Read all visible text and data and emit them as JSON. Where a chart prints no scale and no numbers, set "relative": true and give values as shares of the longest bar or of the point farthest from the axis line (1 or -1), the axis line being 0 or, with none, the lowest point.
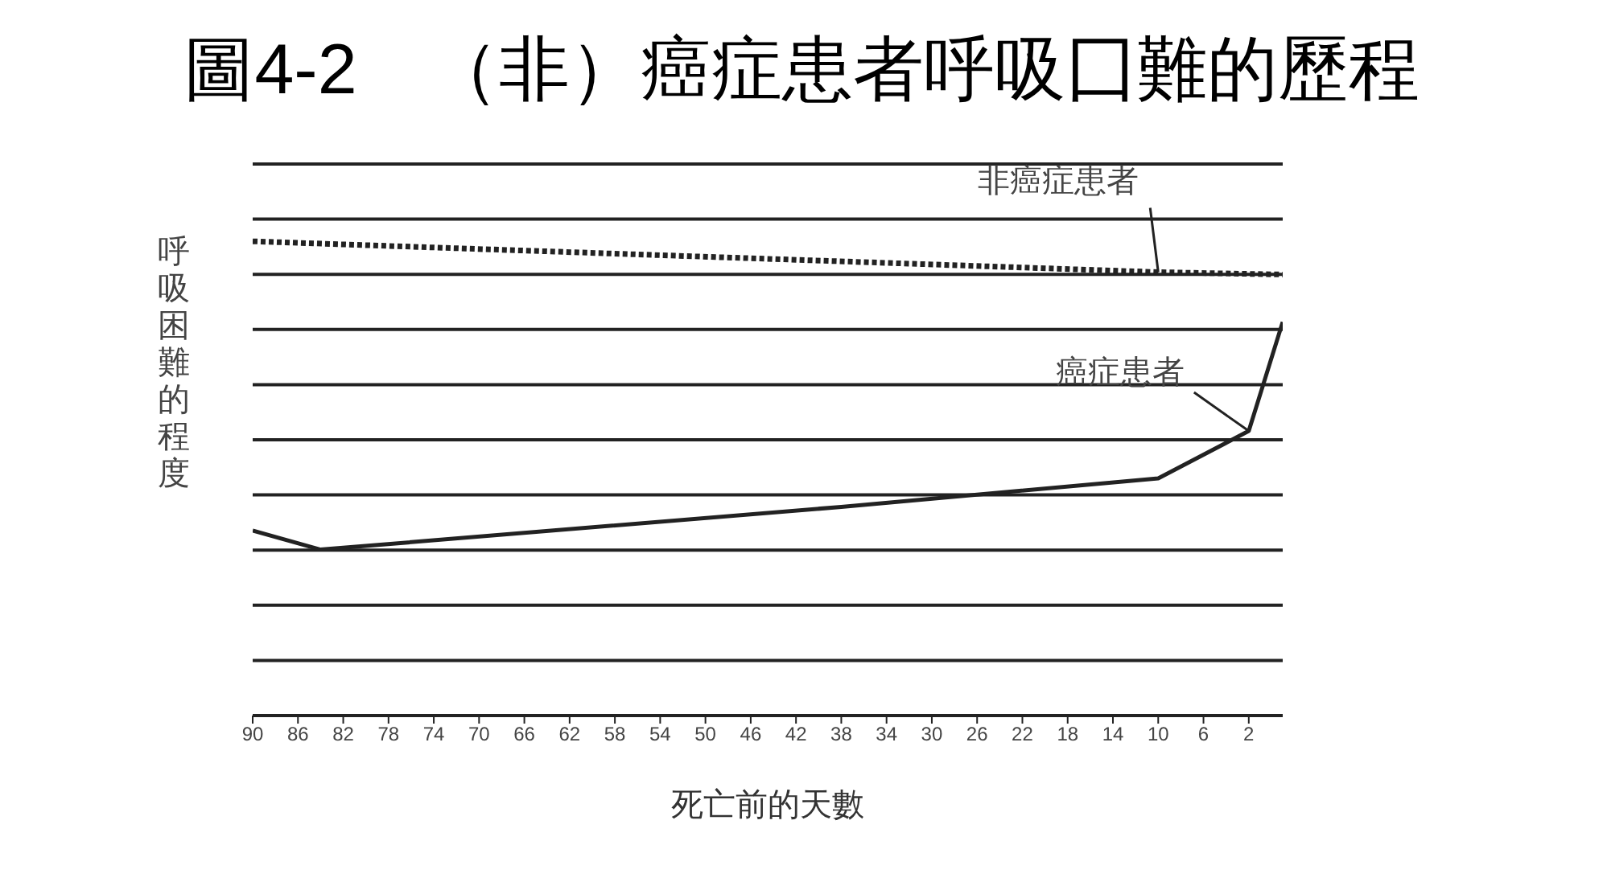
{
  "chart_data": {
    "type": "line",
    "title": "圖4-2　（非）癌症患者呼吸囗難的歷程",
    "xlabel": "死亡前的天數",
    "ylabel": "呼吸困難的程度",
    "relative": true,
    "xlim": [
      90,
      -1
    ],
    "xticks": [
      90,
      86,
      82,
      78,
      74,
      70,
      66,
      62,
      58,
      54,
      50,
      46,
      42,
      38,
      34,
      30,
      26,
      22,
      18,
      14,
      10,
      6,
      2
    ],
    "grid": "y",
    "marker": "none",
    "legend": false,
    "series": [
      {
        "name": "非癌症患者",
        "color": "#222222",
        "line_style": "dotted",
        "x": [
          90,
          10,
          -1
        ],
        "values": [
          1,
          0.935,
          0.93
        ]
      },
      {
        "name": "癌症患者",
        "color": "#222222",
        "line_style": "solid",
        "x": [
          90,
          84,
          38,
          10,
          2,
          -1
        ],
        "values": [
          0.39,
          0.35,
          0.44,
          0.5,
          0.6,
          0.83
        ]
      }
    ]
  }
}
